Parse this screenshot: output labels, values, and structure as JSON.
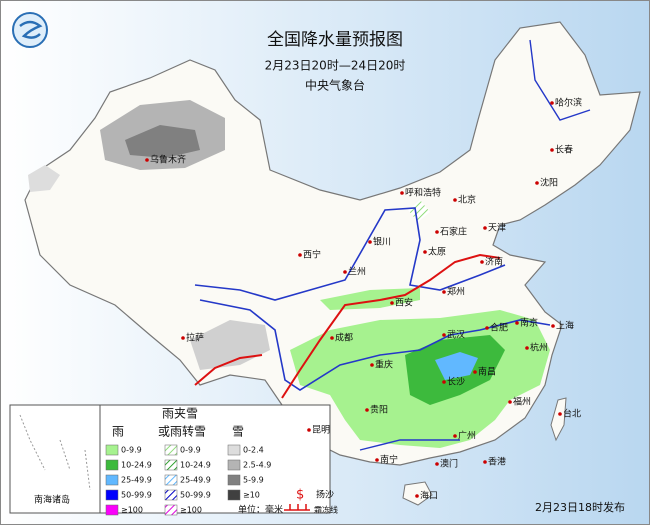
{
  "header": {
    "title": "全国降水量预报图",
    "period": "2月23日20时—24日20时",
    "issuer": "中央气象台"
  },
  "cities": [
    "乌鲁木齐",
    "哈尔滨",
    "长春",
    "沈阳",
    "呼和浩特",
    "北京",
    "天津",
    "石家庄",
    "太原",
    "济南",
    "银川",
    "西宁",
    "兰州",
    "郑州",
    "西安",
    "拉萨",
    "成都",
    "合肥",
    "南京",
    "上海",
    "武汉",
    "杭州",
    "重庆",
    "长沙",
    "南昌",
    "福州",
    "贵阳",
    "昆明",
    "台北",
    "广州",
    "南宁",
    "澳门",
    "香港",
    "海口"
  ],
  "inset": {
    "label": "南海诸岛"
  },
  "legend": {
    "rain": {
      "title": "雨",
      "items": [
        "0-9.9",
        "10-24.9",
        "25-49.9",
        "50-99.9",
        "≥100"
      ]
    },
    "sleet": {
      "title": [
        "雨夹雪",
        "或雨转雪"
      ],
      "items": [
        "0-9.9",
        "10-24.9",
        "25-49.9",
        "50-99.9",
        "≥100"
      ]
    },
    "snow": {
      "title": "雪",
      "items": [
        "0-2.4",
        "2.5-4.9",
        "5-9.9",
        "≥10"
      ]
    },
    "symbols": {
      "sand": "扬沙",
      "frost_line": "霜冻线"
    },
    "unit": "单位：毫米"
  },
  "footer": "2月23日18时发布"
}
